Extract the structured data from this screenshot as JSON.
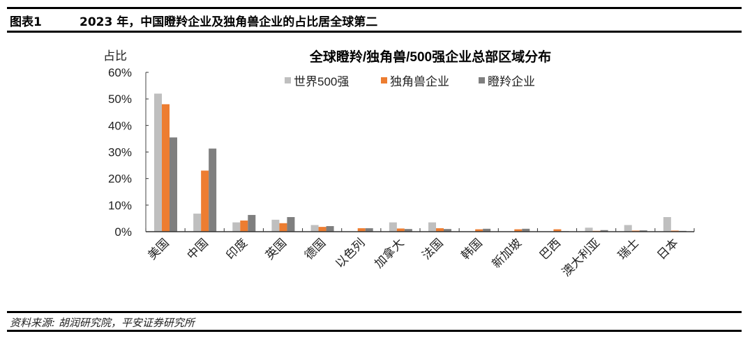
{
  "header": {
    "figure_label": "图表1",
    "title": "2023 年，中国瞪羚企业及独角兽企业的占比居全球第二"
  },
  "footer": {
    "source": "资料来源: 胡润研究院，平安证券研究所"
  },
  "chart_data": {
    "type": "bar",
    "title": "全球瞪羚/独角兽/500强企业总部区域分布",
    "xlabel": "",
    "ylabel": "占比",
    "ylim": [
      0,
      60
    ],
    "yticks": [
      "0%",
      "10%",
      "20%",
      "30%",
      "40%",
      "50%",
      "60%"
    ],
    "grid": false,
    "legend_position": "top",
    "categories": [
      "美国",
      "中国",
      "印度",
      "英国",
      "德国",
      "以色列",
      "加拿大",
      "法国",
      "韩国",
      "新加坡",
      "巴西",
      "澳大利亚",
      "瑞士",
      "日本"
    ],
    "series": [
      {
        "name": "世界500强",
        "color": "#bfbfbf",
        "values": [
          52,
          6.8,
          3.5,
          4.5,
          2.5,
          0,
          3.5,
          3.5,
          0,
          0,
          0,
          1.5,
          2.5,
          5.5
        ]
      },
      {
        "name": "独角兽企业",
        "color": "#ed7d31",
        "values": [
          48,
          23,
          4.2,
          3.2,
          1.8,
          1.3,
          1.2,
          1.3,
          0.9,
          0.9,
          0.9,
          0.3,
          0.4,
          0.4
        ]
      },
      {
        "name": "瞪羚企业",
        "color": "#7f7f7f",
        "values": [
          35.5,
          31.3,
          6.3,
          5.5,
          2.1,
          1.3,
          1.0,
          1.0,
          1.1,
          1.1,
          0.2,
          0.6,
          0.5,
          0.3
        ]
      }
    ]
  }
}
